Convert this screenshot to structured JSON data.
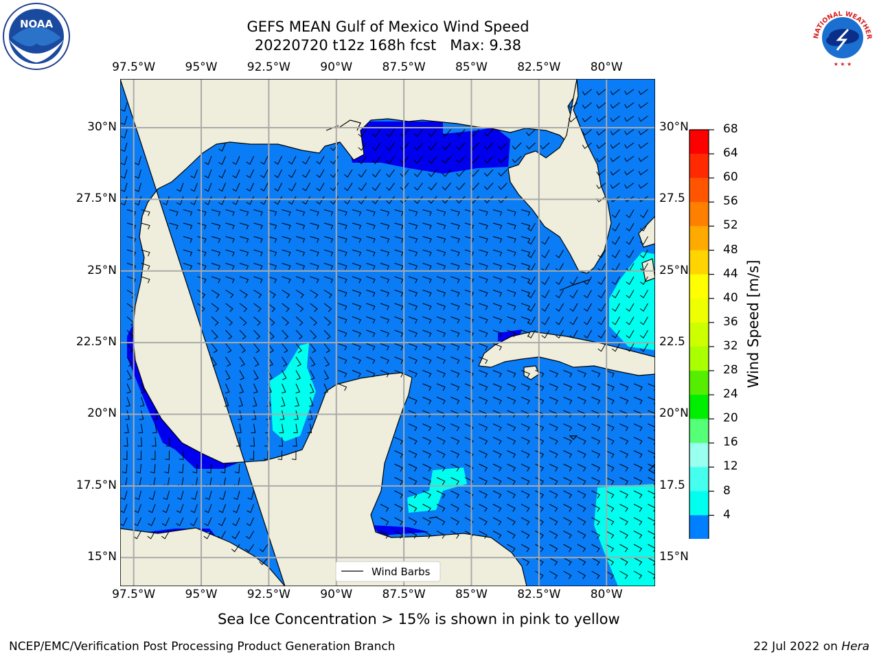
{
  "title": {
    "line1": "GEFS MEAN Gulf of Mexico Wind Speed",
    "line2": "20220720 t12z 168h fcst   Max: 9.38"
  },
  "logos": {
    "left": {
      "name": "noaa-logo",
      "text": "NOAA"
    },
    "right": {
      "name": "nws-logo",
      "text": "NATIONAL WEATHER SERVICE"
    }
  },
  "map": {
    "lon_range": [
      -98.0,
      -78.2
    ],
    "lat_range": [
      14.0,
      31.7
    ],
    "lon_ticks": [
      "97.5°W",
      "95°W",
      "92.5°W",
      "90°W",
      "87.5°W",
      "85°W",
      "82.5°W",
      "80°W"
    ],
    "lat_ticks": [
      "30°N",
      "27.5°N",
      "25°N",
      "22.5°N",
      "20°N",
      "17.5°N",
      "15°N"
    ],
    "right_lat_ticks": [
      "30°N",
      "27.5",
      "25°N",
      "22.5",
      "20°N",
      "17.5",
      "15°N"
    ],
    "land_color": "#efeedc",
    "legend_label": "Wind Barbs",
    "grid": true
  },
  "colorbar": {
    "label": "Wind Speed [m/s]",
    "ticks": [
      "68",
      "64",
      "60",
      "56",
      "52",
      "48",
      "44",
      "40",
      "36",
      "32",
      "28",
      "24",
      "20",
      "16",
      "12",
      "8",
      "4"
    ],
    "colors": [
      "#ff0000",
      "#ff2a00",
      "#ff5500",
      "#ff7f00",
      "#ffaa00",
      "#ffd400",
      "#ffff00",
      "#eeff00",
      "#ccff00",
      "#aaff00",
      "#55ee00",
      "#00ee00",
      "#55ff77",
      "#99ffee",
      "#44ffee",
      "#00ffee",
      "#007fff"
    ],
    "extend_color": "#0000ee"
  },
  "note": "Sea Ice Concentration > 15% is shown in pink to yellow",
  "footer": {
    "left": "NCEP/EMC/Verification Post Processing Product Generation Branch",
    "date": "22 Jul 2022 on ",
    "host": "Hera"
  }
}
